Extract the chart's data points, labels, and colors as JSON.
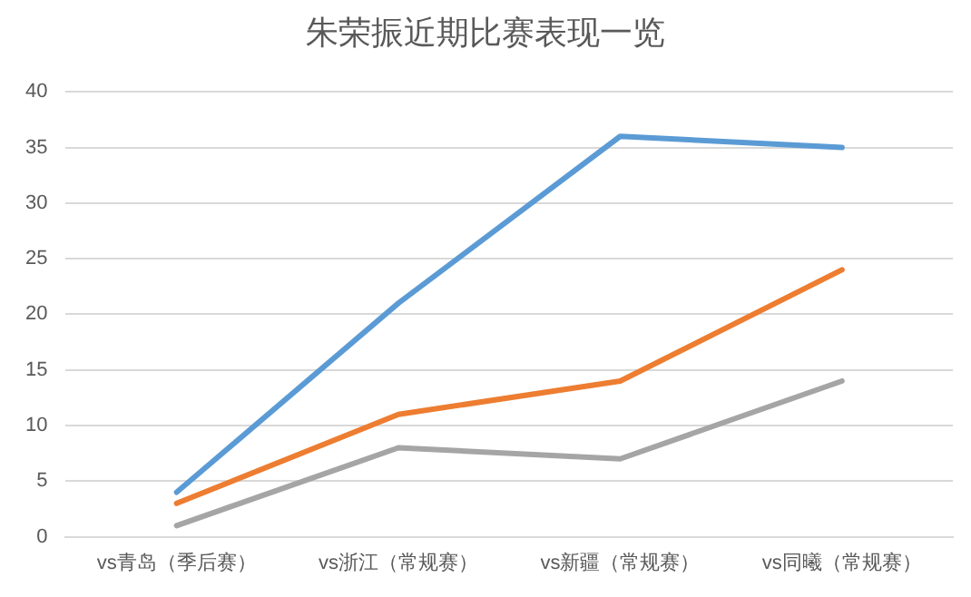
{
  "chart_data": {
    "type": "line",
    "title": "朱荣振近期比赛表现一览",
    "categories": [
      "vs青岛（季后赛）",
      "vs浙江（常规赛）",
      "vs新疆（常规赛）",
      "vs同曦（常规赛）"
    ],
    "series": [
      {
        "color": "#5b9bd5",
        "values": [
          4,
          21,
          36,
          35
        ]
      },
      {
        "color": "#ed7d31",
        "values": [
          3,
          11,
          14,
          24
        ]
      },
      {
        "color": "#a5a5a5",
        "values": [
          1,
          8,
          7,
          14
        ]
      }
    ],
    "ylim": [
      0,
      40
    ],
    "yticks": [
      0,
      5,
      10,
      15,
      20,
      25,
      30,
      35,
      40
    ],
    "grid": "y",
    "marker": "none",
    "line_style": "solid",
    "legend": false
  }
}
